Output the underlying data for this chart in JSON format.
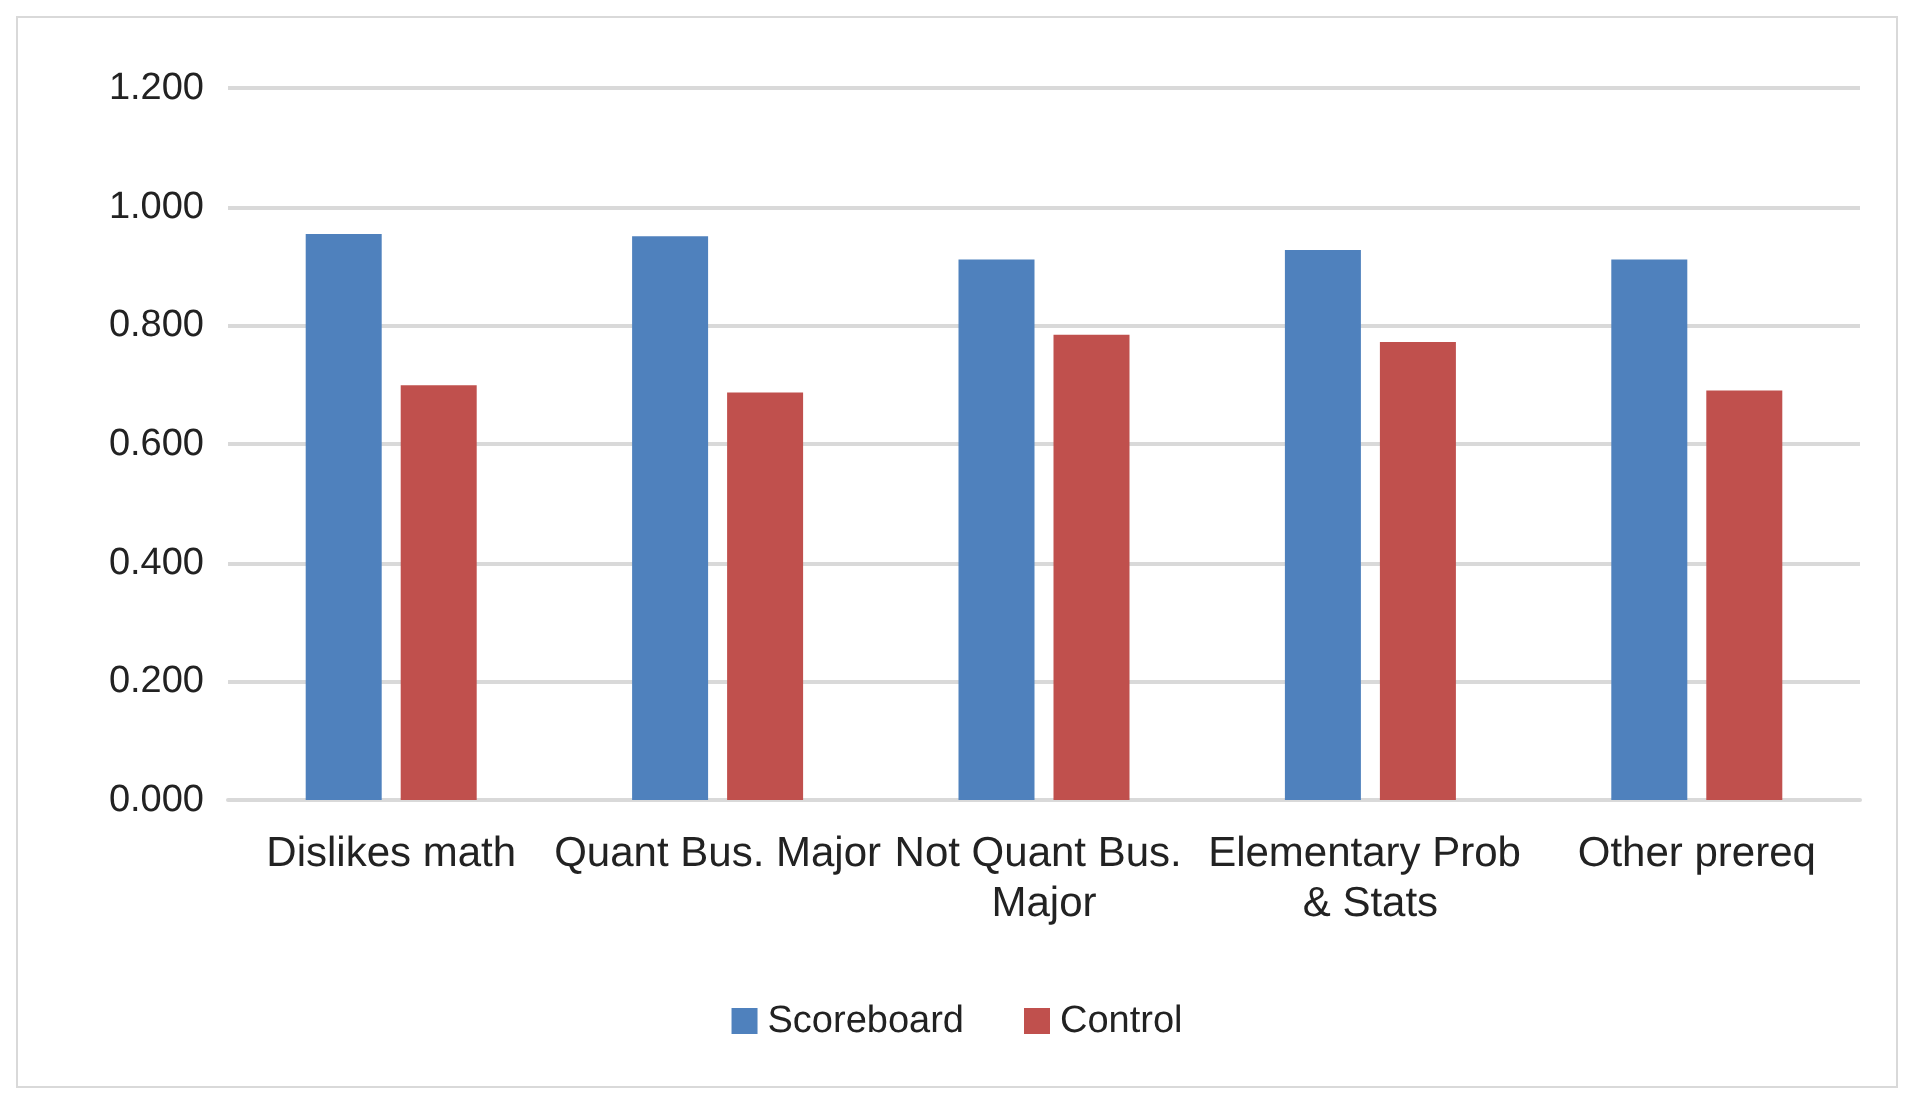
{
  "chart_data": {
    "type": "bar",
    "categories": [
      "Dislikes math",
      "Quant Bus. Major",
      "Not Quant Bus. Major",
      "Elementary Prob & Stats",
      "Other prereq"
    ],
    "series": [
      {
        "name": "Scoreboard",
        "color": "#4f81bd",
        "values": [
          0.954,
          0.95,
          0.911,
          0.927,
          0.911
        ]
      },
      {
        "name": "Control",
        "color": "#c0504d",
        "values": [
          0.699,
          0.687,
          0.784,
          0.772,
          0.69
        ]
      }
    ],
    "ylim": [
      0,
      1.2
    ],
    "yticks": [
      {
        "value": 0,
        "label": "0.000"
      },
      {
        "value": 0.2,
        "label": "0.200"
      },
      {
        "value": 0.4,
        "label": "0.400"
      },
      {
        "value": 0.6,
        "label": "0.600"
      },
      {
        "value": 0.8,
        "label": "0.800"
      },
      {
        "value": 1,
        "label": "1.000"
      },
      {
        "value": 1.2,
        "label": "1.200"
      }
    ],
    "grid": "y",
    "legend": "bottom"
  }
}
